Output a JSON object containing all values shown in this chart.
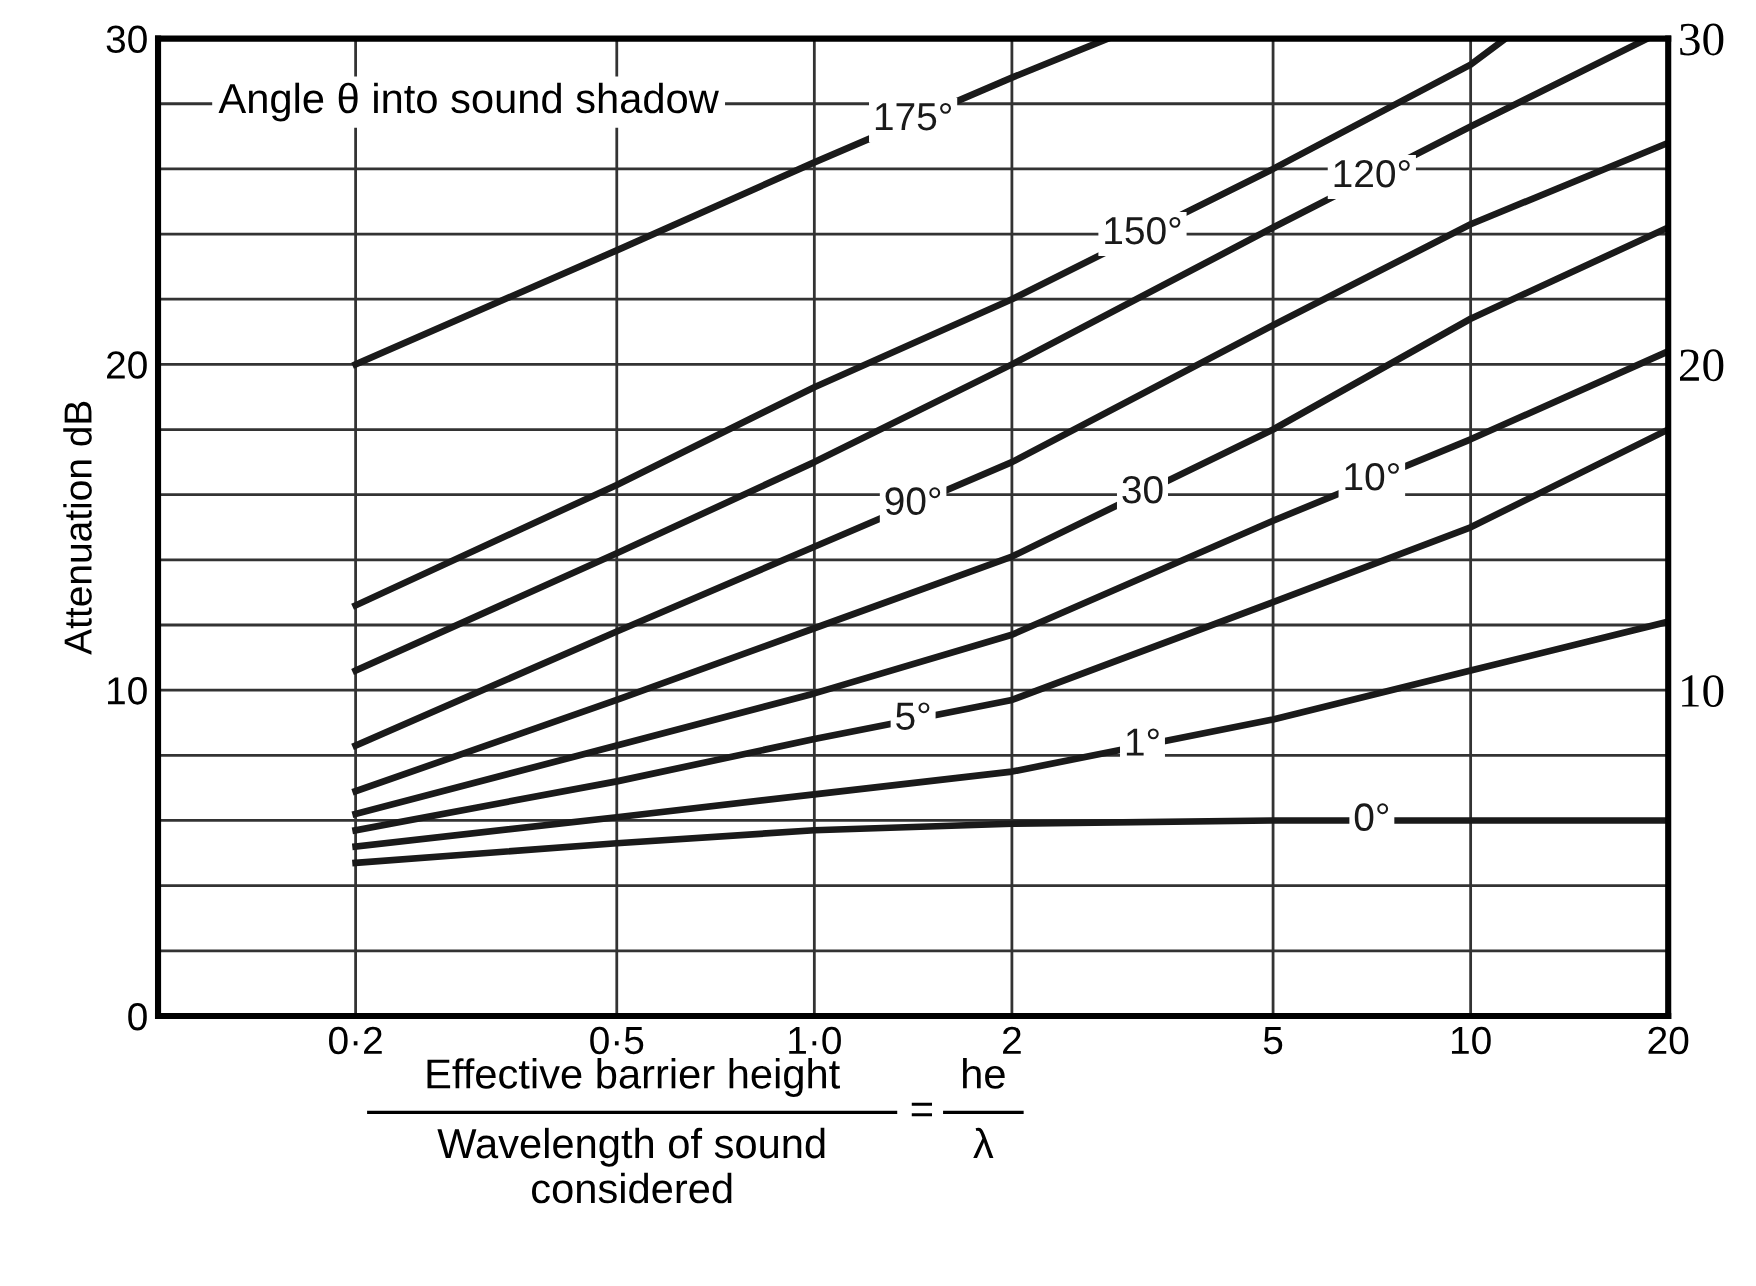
{
  "chart_data": {
    "type": "line",
    "xlabel": "Effective barrier height",
    "ylabel": "Attenuation dB",
    "annotations": [
      "Angle θ into sound shadow",
      "Wavelength of sound\nconsidered",
      "=",
      "he",
      "λ"
    ],
    "log": "x",
    "xlim": [
      0.1,
      20
    ],
    "xticks": [
      {
        "value": 0.2,
        "label": "0·2"
      },
      {
        "value": 0.5,
        "label": "0·5"
      },
      {
        "value": 1,
        "label": "1·0"
      },
      2,
      5,
      10,
      20
    ],
    "ylim": [
      0,
      30
    ],
    "yticks": [
      0,
      {
        "value": 2,
        "label": null
      },
      {
        "value": 4,
        "label": null
      },
      {
        "value": 6,
        "label": null
      },
      {
        "value": 8,
        "label": null
      },
      10,
      {
        "value": 12,
        "label": null
      },
      {
        "value": 14,
        "label": null
      },
      {
        "value": 16,
        "label": null
      },
      {
        "value": 18,
        "label": null
      },
      20,
      {
        "value": 22,
        "label": null
      },
      {
        "value": 24,
        "label": null
      },
      {
        "value": 26,
        "label": null
      },
      {
        "value": 28,
        "label": null
      },
      30
    ],
    "y2lim": [
      0,
      30
    ],
    "y2ticks": [
      10,
      20,
      30
    ],
    "grid": true,
    "legend": false,
    "marker": "none",
    "line_style": "solid",
    "series": [
      {
        "name": "175°",
        "color": "#1a1a1a",
        "x": [
          0.2,
          0.5,
          1,
          2,
          2.8
        ],
        "values": [
          20,
          23.5,
          26.2,
          28.8,
          30
        ]
      },
      {
        "name": "150°",
        "color": "#1a1a1a",
        "x": [
          0.2,
          0.5,
          1,
          2,
          5,
          10,
          11.3
        ],
        "values": [
          12.6,
          16.3,
          19.3,
          22,
          26,
          29.2,
          30
        ]
      },
      {
        "name": "120°",
        "color": "#1a1a1a",
        "x": [
          0.2,
          0.5,
          1,
          2,
          5,
          10,
          18.6
        ],
        "values": [
          10.6,
          14.2,
          17,
          20,
          24.2,
          27.3,
          30
        ]
      },
      {
        "name": "90°",
        "color": "#1a1a1a",
        "x": [
          0.2,
          0.5,
          1,
          2,
          5,
          10,
          20
        ],
        "values": [
          8.3,
          11.8,
          14.4,
          17,
          21.2,
          24.3,
          26.8
        ]
      },
      {
        "name": "30",
        "color": "#1a1a1a",
        "x": [
          0.2,
          0.5,
          1,
          2,
          5,
          10,
          20
        ],
        "values": [
          6.9,
          9.7,
          11.9,
          14.1,
          18,
          21.4,
          24.2
        ]
      },
      {
        "name": "10°",
        "color": "#1a1a1a",
        "x": [
          0.2,
          0.5,
          1,
          2,
          5,
          10,
          20
        ],
        "values": [
          6.2,
          8.3,
          9.9,
          11.7,
          15.2,
          17.7,
          20.4
        ]
      },
      {
        "name": "5°",
        "color": "#1a1a1a",
        "x": [
          0.2,
          0.5,
          1,
          2,
          5,
          10,
          20
        ],
        "values": [
          5.7,
          7.2,
          8.5,
          9.7,
          12.7,
          15,
          18
        ]
      },
      {
        "name": "1°",
        "color": "#1a1a1a",
        "x": [
          0.2,
          0.5,
          1,
          2,
          5,
          10,
          20
        ],
        "values": [
          5.2,
          6.1,
          6.8,
          7.5,
          9.1,
          10.6,
          12.1
        ]
      },
      {
        "name": "0°",
        "color": "#1a1a1a",
        "x": [
          0.2,
          0.5,
          1,
          2,
          5,
          10,
          20
        ],
        "values": [
          4.7,
          5.3,
          5.7,
          5.9,
          6,
          6,
          6
        ]
      }
    ]
  }
}
